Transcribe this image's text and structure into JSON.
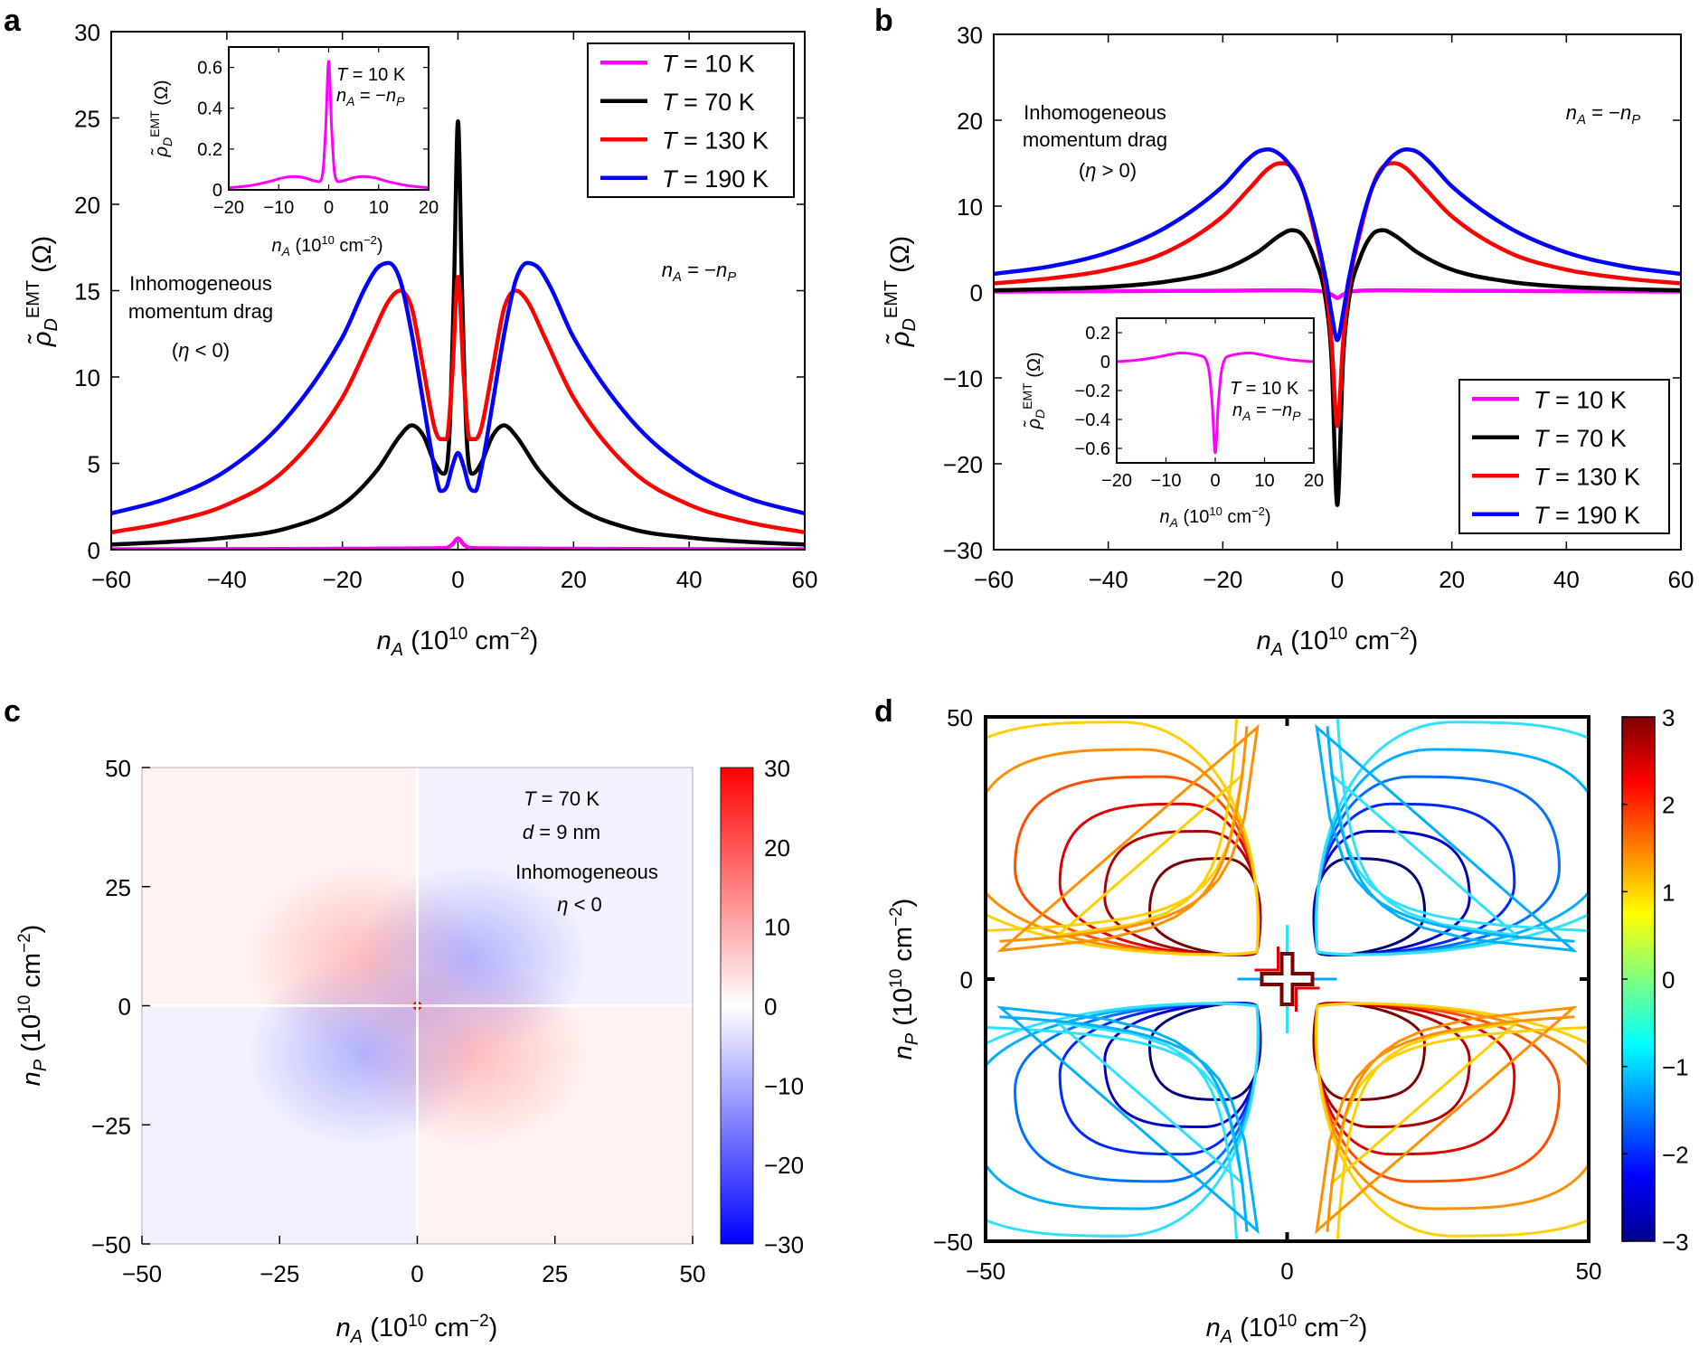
{
  "chart_data": [
    {
      "panel": "a",
      "type": "line",
      "xlabel": "n_A (10^10 cm^-2)",
      "ylabel": "ρ̃_D^EMT (Ω)",
      "xlim": [
        -60,
        60
      ],
      "ylim": [
        0,
        30
      ],
      "xticks": [
        -60,
        -40,
        -20,
        0,
        20,
        40,
        60
      ],
      "yticks": [
        0,
        5,
        10,
        15,
        20,
        25,
        30
      ],
      "xtick_labels": [
        "−60",
        "−40",
        "−20",
        "0",
        "20",
        "40",
        "60"
      ],
      "ytick_labels": [
        "0",
        "5",
        "10",
        "15",
        "20",
        "25",
        "30"
      ],
      "annotations": [
        "Inhomogeneous",
        "momentum drag",
        "(η < 0)",
        "n_A = −n_P"
      ],
      "series": [
        {
          "name": "T = 10 K",
          "color": "#ff00ff",
          "x": [
            -60,
            -40,
            -20,
            -10,
            -5,
            -2,
            -1,
            0,
            1,
            2,
            5,
            10,
            20,
            40,
            60
          ],
          "y": [
            0.02,
            0.03,
            0.05,
            0.07,
            0.08,
            0.1,
            0.3,
            0.65,
            0.3,
            0.1,
            0.08,
            0.07,
            0.05,
            0.03,
            0.02
          ]
        },
        {
          "name": "T = 70 K",
          "color": "#000000",
          "x": [
            -60,
            -50,
            -40,
            -30,
            -20,
            -14,
            -10,
            -8,
            -6,
            -4,
            -2.5,
            -1.5,
            -0.7,
            0,
            0.7,
            1.5,
            2.5,
            4,
            6,
            8,
            10,
            14,
            20,
            30,
            40,
            50,
            60
          ],
          "y": [
            0.3,
            0.45,
            0.7,
            1.2,
            2.6,
            4.6,
            6.6,
            7.2,
            6.6,
            5.0,
            4.4,
            6.5,
            15.0,
            24.8,
            15.0,
            6.5,
            4.4,
            5.0,
            6.6,
            7.2,
            6.6,
            4.6,
            2.6,
            1.2,
            0.7,
            0.45,
            0.3
          ]
        },
        {
          "name": "T = 130 K",
          "color": "#ff0000",
          "x": [
            -60,
            -50,
            -40,
            -30,
            -20,
            -15,
            -12,
            -10,
            -8,
            -6,
            -4,
            -3,
            -2,
            -1,
            0,
            1,
            2,
            3,
            4,
            6,
            8,
            10,
            12,
            15,
            20,
            30,
            40,
            50,
            60
          ],
          "y": [
            1.0,
            1.6,
            2.6,
            4.6,
            8.8,
            12.3,
            14.4,
            15.0,
            14.0,
            10.5,
            7.0,
            6.4,
            6.4,
            10.0,
            15.8,
            10.0,
            6.4,
            6.4,
            7.0,
            10.5,
            14.0,
            15.0,
            14.4,
            12.3,
            8.8,
            4.6,
            2.6,
            1.6,
            1.0
          ]
        },
        {
          "name": "T = 190 K",
          "color": "#0000ff",
          "x": [
            -60,
            -50,
            -40,
            -30,
            -20,
            -16,
            -14,
            -12,
            -10,
            -8,
            -6,
            -4,
            -3,
            -2,
            -1,
            0,
            1,
            2,
            3,
            4,
            6,
            8,
            10,
            12,
            14,
            16,
            20,
            30,
            40,
            50,
            60
          ],
          "y": [
            2.1,
            3.0,
            4.6,
            7.5,
            12.3,
            15.2,
            16.3,
            16.6,
            15.6,
            12.5,
            8.5,
            4.6,
            3.4,
            3.6,
            4.8,
            5.6,
            4.8,
            3.6,
            3.4,
            4.6,
            8.5,
            12.5,
            15.6,
            16.6,
            16.3,
            15.2,
            12.3,
            7.5,
            4.6,
            3.0,
            2.1
          ]
        }
      ],
      "legend": {
        "placement": "top-right",
        "entries": [
          "T = 10 K",
          "T = 70 K",
          "T = 130 K",
          "T = 190 K"
        ]
      },
      "inset": {
        "type": "line",
        "xlabel": "n_A (10^10 cm^-2)",
        "ylabel": "ρ̃_D^EMT (Ω)",
        "xlim": [
          -20,
          20
        ],
        "ylim": [
          0,
          0.7
        ],
        "xticks": [
          -20,
          -10,
          0,
          10,
          20
        ],
        "yticks": [
          0,
          0.2,
          0.4,
          0.6
        ],
        "xtick_labels": [
          "−20",
          "−10",
          "0",
          "10",
          "20"
        ],
        "ytick_labels": [
          "0",
          "0.2",
          "0.4",
          "0.6"
        ],
        "annotations": [
          "T = 10 K",
          "n_A = −n_P"
        ],
        "series": [
          {
            "name": "T = 10 K",
            "color": "#ff00ff",
            "x": [
              -20,
              -16,
              -12,
              -9,
              -7,
              -5,
              -3,
              -2,
              -1.2,
              -0.6,
              0,
              0.6,
              1.2,
              2,
              3,
              5,
              7,
              9,
              12,
              16,
              20
            ],
            "y": [
              0.01,
              0.02,
              0.04,
              0.06,
              0.065,
              0.06,
              0.045,
              0.04,
              0.08,
              0.3,
              0.63,
              0.3,
              0.08,
              0.04,
              0.045,
              0.06,
              0.065,
              0.06,
              0.04,
              0.02,
              0.01
            ]
          }
        ]
      }
    },
    {
      "panel": "b",
      "type": "line",
      "xlabel": "n_A (10^10 cm^-2)",
      "ylabel": "ρ̃_D^EMT (Ω)",
      "xlim": [
        -60,
        60
      ],
      "ylim": [
        -30,
        30
      ],
      "xticks": [
        -60,
        -40,
        -20,
        0,
        20,
        40,
        60
      ],
      "yticks": [
        -30,
        -20,
        -10,
        0,
        10,
        20,
        30
      ],
      "xtick_labels": [
        "−60",
        "−40",
        "−20",
        "0",
        "20",
        "40",
        "60"
      ],
      "ytick_labels": [
        "−30",
        "−20",
        "−10",
        "0",
        "10",
        "20",
        "30"
      ],
      "annotations": [
        "Inhomogeneous",
        "momentum drag",
        "(η > 0)",
        "n_A = −n_P"
      ],
      "series": [
        {
          "name": "T = 10 K",
          "color": "#ff00ff",
          "x": [
            -60,
            -20,
            -8,
            -3,
            -1,
            0,
            1,
            3,
            8,
            20,
            60
          ],
          "y": [
            0.05,
            0.15,
            0.2,
            0.1,
            -0.3,
            -0.7,
            -0.3,
            0.1,
            0.2,
            0.15,
            0.05
          ]
        },
        {
          "name": "T = 70 K",
          "color": "#000000",
          "x": [
            -60,
            -50,
            -40,
            -30,
            -20,
            -14,
            -10,
            -8,
            -6,
            -4,
            -2,
            -1,
            0,
            1,
            2,
            4,
            6,
            8,
            10,
            14,
            20,
            30,
            40,
            50,
            60
          ],
          "y": [
            0.2,
            0.35,
            0.6,
            1.2,
            2.6,
            4.6,
            6.6,
            7.2,
            6.6,
            4.0,
            -1.0,
            -8.0,
            -24.8,
            -8.0,
            -1.0,
            4.0,
            6.6,
            7.2,
            6.6,
            4.6,
            2.6,
            1.2,
            0.6,
            0.35,
            0.2
          ]
        },
        {
          "name": "T = 130 K",
          "color": "#ff0000",
          "x": [
            -60,
            -50,
            -40,
            -30,
            -20,
            -15,
            -12,
            -10,
            -8,
            -6,
            -4,
            -2,
            -1,
            0,
            1,
            2,
            4,
            6,
            8,
            10,
            12,
            15,
            20,
            30,
            40,
            50,
            60
          ],
          "y": [
            1.0,
            1.6,
            2.6,
            4.6,
            8.8,
            12.3,
            14.4,
            15.0,
            14.6,
            12.0,
            7.0,
            0.5,
            -6.0,
            -15.6,
            -6.0,
            0.5,
            7.0,
            12.0,
            14.6,
            15.0,
            14.4,
            12.3,
            8.8,
            4.6,
            2.6,
            1.6,
            1.0
          ]
        },
        {
          "name": "T = 190 K",
          "color": "#0000ff",
          "x": [
            -60,
            -50,
            -40,
            -30,
            -20,
            -16,
            -14,
            -12,
            -10,
            -8,
            -6,
            -4,
            -2,
            -1,
            0,
            1,
            2,
            4,
            6,
            8,
            10,
            12,
            14,
            16,
            20,
            30,
            40,
            50,
            60
          ],
          "y": [
            2.1,
            3.0,
            4.6,
            7.5,
            12.3,
            15.2,
            16.3,
            16.6,
            16.0,
            14.5,
            12.0,
            7.5,
            1.5,
            -2.5,
            -5.6,
            -2.5,
            1.5,
            7.5,
            12.0,
            14.5,
            16.0,
            16.6,
            16.3,
            15.2,
            12.3,
            7.5,
            4.6,
            3.0,
            2.1
          ]
        }
      ],
      "legend": {
        "placement": "bottom-right",
        "entries": [
          "T = 10 K",
          "T = 70 K",
          "T = 130 K",
          "T = 190 K"
        ]
      },
      "inset": {
        "type": "line",
        "xlabel": "n_A (10^10 cm^-2)",
        "ylabel": "ρ̃_D^EMT (Ω)",
        "xlim": [
          -20,
          20
        ],
        "ylim": [
          -0.7,
          0.3
        ],
        "xticks": [
          -20,
          -10,
          0,
          10,
          20
        ],
        "yticks": [
          -0.6,
          -0.4,
          -0.2,
          0,
          0.2
        ],
        "xtick_labels": [
          "−20",
          "−10",
          "0",
          "10",
          "20"
        ],
        "ytick_labels": [
          "−0.6",
          "−0.4",
          "−0.2",
          "0",
          "0.2"
        ],
        "annotations": [
          "T = 10 K",
          "n_A = −n_P"
        ],
        "series": [
          {
            "name": "T = 10 K",
            "color": "#ff00ff",
            "x": [
              -20,
              -16,
              -12,
              -9,
              -7,
              -5,
              -3,
              -2,
              -1.2,
              -0.6,
              0,
              0.6,
              1.2,
              2,
              3,
              5,
              7,
              9,
              12,
              16,
              20
            ],
            "y": [
              0.0,
              0.01,
              0.03,
              0.05,
              0.06,
              0.055,
              0.04,
              0.02,
              -0.08,
              -0.3,
              -0.63,
              -0.3,
              -0.08,
              0.02,
              0.04,
              0.055,
              0.06,
              0.05,
              0.03,
              0.01,
              0.0
            ]
          }
        ]
      }
    },
    {
      "panel": "c",
      "type": "heatmap",
      "xlabel": "n_A (10^10 cm^-2)",
      "ylabel": "n_P (10^10 cm^-2)",
      "xlim": [
        -50,
        50
      ],
      "ylim": [
        -50,
        50
      ],
      "xticks": [
        -50,
        -25,
        0,
        25,
        50
      ],
      "yticks": [
        -50,
        -25,
        0,
        25,
        50
      ],
      "xtick_labels": [
        "−50",
        "−25",
        "0",
        "25",
        "50"
      ],
      "ytick_labels": [
        "−50",
        "−25",
        "0",
        "25",
        "50"
      ],
      "colorbar": {
        "range": [
          -30,
          30
        ],
        "ticks": [
          -30,
          -20,
          -10,
          0,
          10,
          20,
          30
        ],
        "tick_labels": [
          "−30",
          "−20",
          "−10",
          "0",
          "10",
          "20",
          "30"
        ],
        "colors": [
          "#0000ff",
          "#ffffff",
          "#ff0000"
        ]
      },
      "annotations": [
        "T = 70 K",
        "d = 9 nm",
        "Inhomogeneous",
        "η < 0"
      ],
      "features": [
        {
          "label": "positive lobe, n_A<0, n_P>0",
          "center": [
            -10,
            10
          ],
          "peak": 6
        },
        {
          "label": "positive lobe, n_A>0, n_P<0",
          "center": [
            10,
            -10
          ],
          "peak": 6
        },
        {
          "label": "negative lobe, n_A>0, n_P>0",
          "center": [
            10,
            10
          ],
          "peak": -7
        },
        {
          "label": "negative lobe, n_A<0, n_P<0",
          "center": [
            -10,
            -10
          ],
          "peak": -7
        },
        {
          "label": "sharp peak at origin",
          "center": [
            0,
            0
          ],
          "peak": 25
        }
      ]
    },
    {
      "panel": "d",
      "type": "contour",
      "xlabel": "n_A (10^10 cm^-2)",
      "ylabel": "n_P (10^10 cm^-2)",
      "xlim": [
        -50,
        50
      ],
      "ylim": [
        -50,
        50
      ],
      "xticks": [
        -50,
        0,
        50
      ],
      "yticks": [
        -50,
        0,
        50
      ],
      "xtick_labels": [
        "−50",
        "0",
        "50"
      ],
      "ytick_labels": [
        "−50",
        "0",
        "50"
      ],
      "colorbar": {
        "range": [
          -3,
          3
        ],
        "ticks": [
          -3,
          -2,
          -1,
          0,
          1,
          2,
          3
        ],
        "tick_labels": [
          "−3",
          "−2",
          "−1",
          "0",
          "1",
          "2",
          "3"
        ],
        "colors": [
          "#00008f",
          "#0000ff",
          "#00ffff",
          "#7fff7f",
          "#ffff00",
          "#ff0000",
          "#7f0000"
        ]
      },
      "levels": [
        -2.6,
        -2.2,
        -1.8,
        -1.4,
        -1.0,
        -0.6,
        0.6,
        1.0,
        1.4,
        1.8,
        2.2,
        2.6
      ],
      "level_colors": [
        "#00007a",
        "#0000c8",
        "#0028ff",
        "#0070ff",
        "#00b0ff",
        "#30e0ff",
        "#ffd000",
        "#ff9000",
        "#ff5000",
        "#e00000",
        "#b00000",
        "#7a0000"
      ],
      "lobes": [
        {
          "quadrant": "top-left",
          "center": [
            -10,
            10
          ],
          "sign": 1
        },
        {
          "quadrant": "bottom-right",
          "center": [
            10,
            -10
          ],
          "sign": 1
        },
        {
          "quadrant": "top-right",
          "center": [
            10,
            10
          ],
          "sign": -1
        },
        {
          "quadrant": "bottom-left",
          "center": [
            -10,
            -10
          ],
          "sign": -1
        }
      ]
    }
  ],
  "panel_labels": {
    "a": "a",
    "b": "b",
    "c": "c",
    "d": "d"
  }
}
